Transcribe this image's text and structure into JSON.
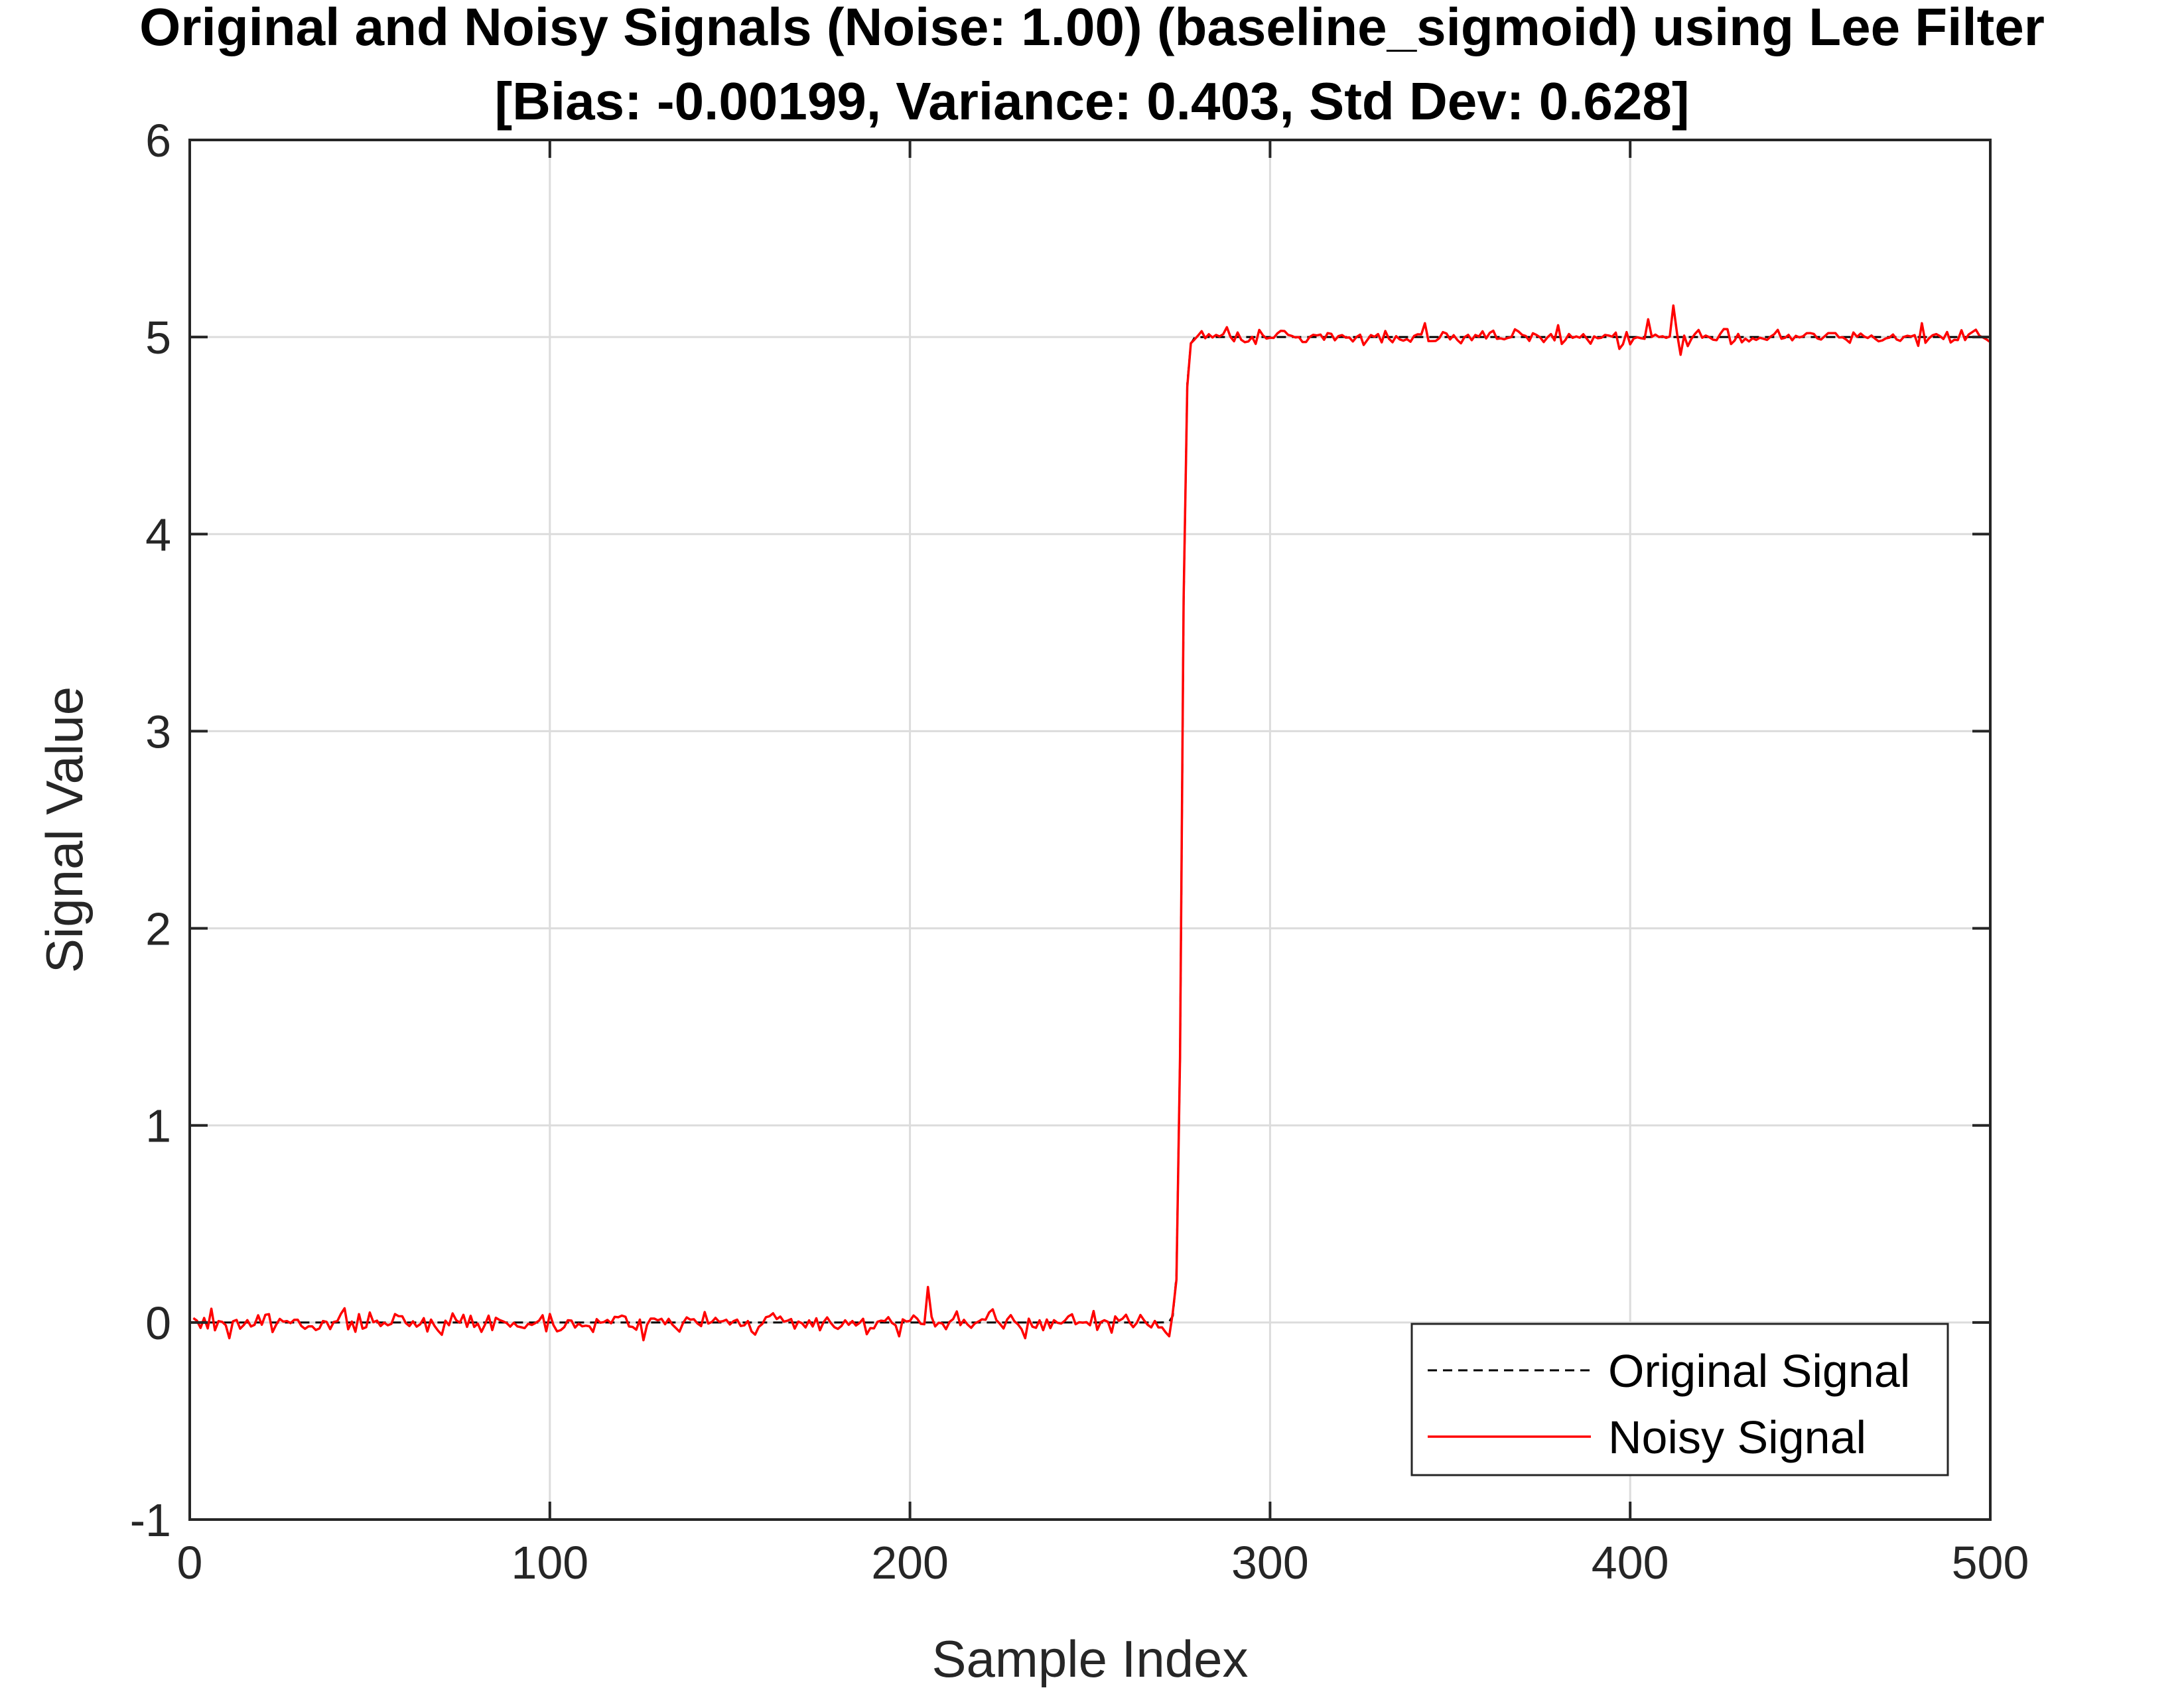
{
  "chart_data": {
    "type": "line",
    "title": [
      "Original and Noisy Signals (Noise: 1.00) (baseline_sigmoid) using Lee Filter",
      "[Bias: -0.00199, Variance: 0.403, Std Dev: 0.628]"
    ],
    "xlabel": "Sample Index",
    "ylabel": "Signal Value",
    "xlim": [
      0,
      500
    ],
    "ylim": [
      -1,
      6
    ],
    "xticks": [
      0,
      100,
      200,
      300,
      400,
      500
    ],
    "xtick_labels": [
      "0",
      "100",
      "200",
      "300",
      "400",
      "500"
    ],
    "yticks": [
      -1,
      0,
      1,
      2,
      3,
      4,
      5,
      6
    ],
    "ytick_labels": [
      "-1",
      "0",
      "1",
      "2",
      "3",
      "4",
      "5",
      "6"
    ],
    "grid": true,
    "legend_position": "bottom-right",
    "x": {
      "start": 1,
      "end": 500,
      "step": 1
    },
    "series": [
      {
        "name": "Original Signal",
        "color": "#000000",
        "style": "dashed",
        "function": "sigmoid",
        "low": 0,
        "high": 5,
        "center": 275.5,
        "steepness": 2
      },
      {
        "name": "Noisy Signal",
        "color": "#ff0000",
        "style": "solid",
        "noise_amplitude_low": 0.05,
        "noise_amplitude_high": 0.035,
        "notable_points": [
          {
            "x": 6,
            "y": 0.07
          },
          {
            "x": 11,
            "y": -0.08
          },
          {
            "x": 126,
            "y": -0.09
          },
          {
            "x": 197,
            "y": -0.07
          },
          {
            "x": 205,
            "y": 0.18
          },
          {
            "x": 232,
            "y": -0.08
          },
          {
            "x": 272,
            "y": -0.07
          },
          {
            "x": 288,
            "y": 5.05
          },
          {
            "x": 343,
            "y": 5.07
          },
          {
            "x": 380,
            "y": 5.06
          },
          {
            "x": 397,
            "y": 4.94
          },
          {
            "x": 405,
            "y": 5.09
          },
          {
            "x": 412,
            "y": 5.16
          },
          {
            "x": 414,
            "y": 4.91
          },
          {
            "x": 481,
            "y": 5.07
          }
        ]
      }
    ]
  }
}
